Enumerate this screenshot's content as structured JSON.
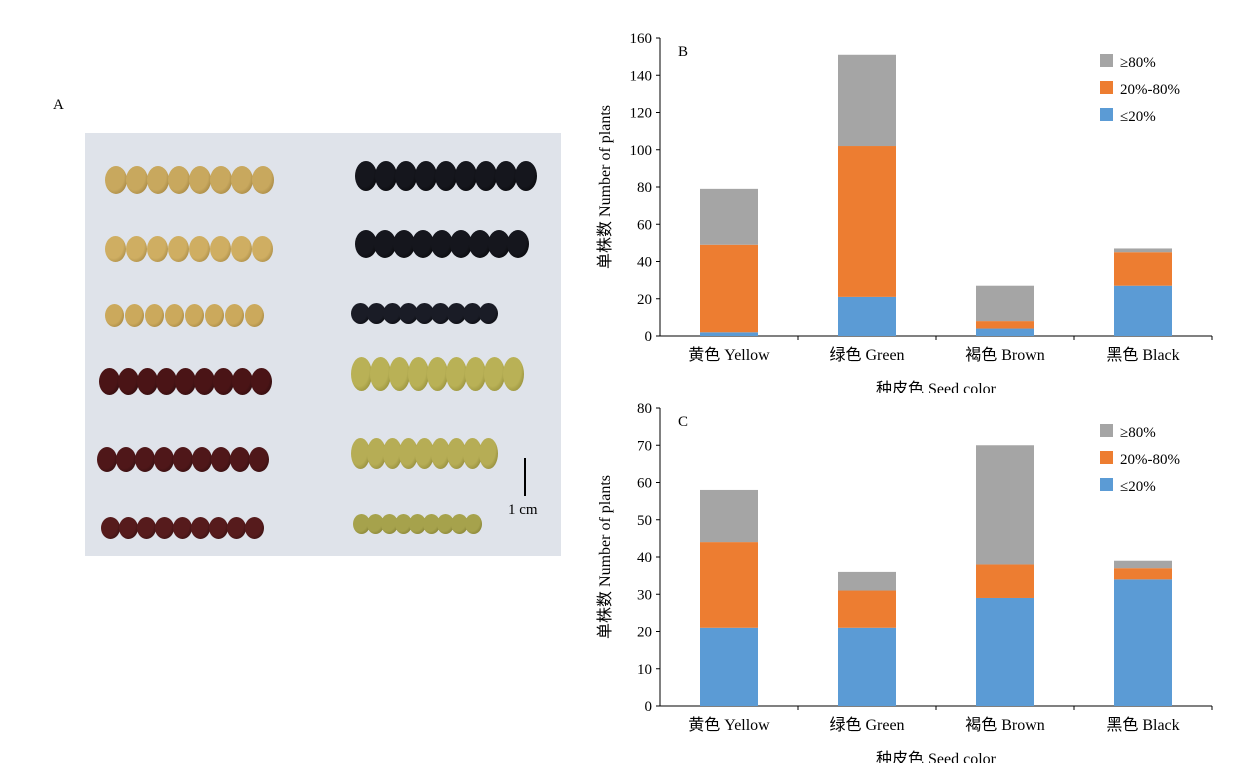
{
  "panels": {
    "a": "A",
    "b": "B",
    "c": "C"
  },
  "scale_label": "1 cm",
  "colors": {
    "low": "#5b9bd5",
    "mid": "#ed7d31",
    "high": "#a5a5a5"
  },
  "chart_data": [
    {
      "type": "bar",
      "stacked": true,
      "panel": "B",
      "categories": [
        "黄色 Yellow",
        "绿色 Green",
        "褐色 Brown",
        "黑色 Black"
      ],
      "series": [
        {
          "name": "≤20%",
          "values": [
            2,
            21,
            4,
            27
          ]
        },
        {
          "name": "20%-80%",
          "values": [
            47,
            81,
            4,
            18
          ]
        },
        {
          "name": "≥80%",
          "values": [
            30,
            49,
            19,
            2
          ]
        }
      ],
      "xlabel": "种皮色 Seed color",
      "ylabel": "单株数 Number of plants",
      "ylim": [
        0,
        160
      ],
      "yticks": [
        0,
        20,
        40,
        60,
        80,
        100,
        120,
        140,
        160
      ],
      "legend": [
        "≥80%",
        "20%-80%",
        "≤20%"
      ],
      "legend_position": "top-right",
      "grid": false
    },
    {
      "type": "bar",
      "stacked": true,
      "panel": "C",
      "categories": [
        "黄色 Yellow",
        "绿色 Green",
        "褐色 Brown",
        "黑色 Black"
      ],
      "series": [
        {
          "name": "≤20%",
          "values": [
            21,
            21,
            29,
            34
          ]
        },
        {
          "name": "20%-80%",
          "values": [
            23,
            10,
            9,
            3
          ]
        },
        {
          "name": "≥80%",
          "values": [
            14,
            5,
            32,
            2
          ]
        }
      ],
      "xlabel": "种皮色 Seed color",
      "ylabel": "单株数 Number of plants",
      "ylim": [
        0,
        80
      ],
      "yticks": [
        0,
        10,
        20,
        30,
        40,
        50,
        60,
        70,
        80
      ],
      "legend": [
        "≥80%",
        "20%-80%",
        "≤20%"
      ],
      "legend_position": "top-right",
      "grid": false
    }
  ]
}
